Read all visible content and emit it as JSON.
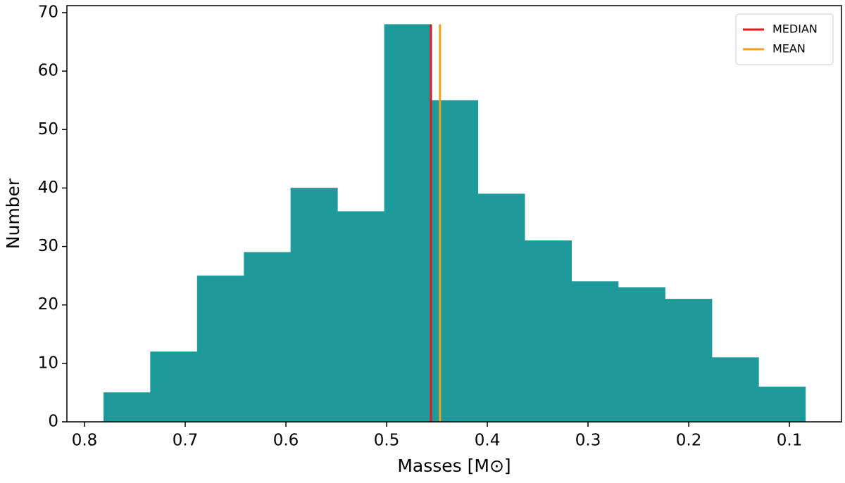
{
  "chart_data": {
    "type": "histogram",
    "xlabel": "Masses [M⊙]",
    "ylabel": "Number",
    "bins": [
      0.084,
      0.1305,
      0.1769,
      0.2234,
      0.2699,
      0.3163,
      0.3628,
      0.4093,
      0.4558,
      0.5022,
      0.5487,
      0.5952,
      0.6416,
      0.6881,
      0.7346,
      0.781
    ],
    "counts": [
      6,
      11,
      21,
      23,
      24,
      31,
      39,
      55,
      68,
      36,
      40,
      29,
      25,
      12,
      5
    ],
    "color": "#1f9a9a",
    "lines": [
      {
        "name": "MEDIAN",
        "color": "#e8161b",
        "x": 0.456,
        "ymax": 68
      },
      {
        "name": "MEAN",
        "color": "#f0a01a",
        "x": 0.447,
        "ymax": 68
      }
    ],
    "xlim": [
      0.8175,
      0.0483
    ],
    "xticks": [
      0.8,
      0.7,
      0.6,
      0.5,
      0.4,
      0.3,
      0.2,
      0.1
    ],
    "ylim": [
      0,
      71.2
    ],
    "yticks": [
      0,
      10,
      20,
      30,
      40,
      50,
      60,
      70
    ],
    "legend": "upper right"
  }
}
